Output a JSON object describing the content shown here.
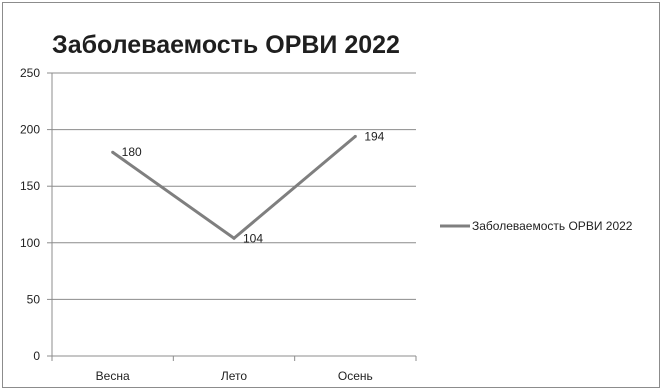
{
  "chart_data": {
    "type": "line",
    "title": "Заболеваемость ОРВИ 2022",
    "categories": [
      "Весна",
      "Лето",
      "Осень"
    ],
    "series": [
      {
        "name": "Заболеваемость ОРВИ 2022",
        "values": [
          180,
          104,
          194
        ]
      }
    ],
    "ylim": [
      0,
      250
    ],
    "yticks": [
      0,
      50,
      100,
      150,
      200,
      250
    ],
    "grid": true,
    "legend_position": "right",
    "colors": {
      "line": "#7f7f7f",
      "grid": "#8c8c8c"
    }
  }
}
